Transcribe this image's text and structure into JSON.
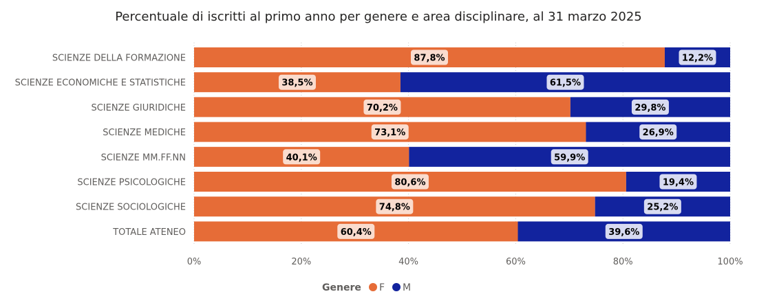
{
  "chart_data": {
    "type": "bar",
    "orientation": "horizontal",
    "stacked": "100%",
    "title": "Percentuale di iscritti al primo anno per genere e area disciplinare, al 31 marzo 2025",
    "categories": [
      "SCIENZE DELLA FORMAZIONE",
      "SCIENZE ECONOMICHE E STATISTICHE",
      "SCIENZE GIURIDICHE",
      "SCIENZE MEDICHE",
      "SCIENZE MM.FF.NN",
      "SCIENZE PSICOLOGICHE",
      "SCIENZE SOCIOLOGICHE",
      "TOTALE ATENEO"
    ],
    "series": [
      {
        "name": "F",
        "color": "#e66c37",
        "values": [
          87.8,
          38.5,
          70.2,
          73.1,
          40.1,
          80.6,
          74.8,
          60.4
        ],
        "labels": [
          "87,8%",
          "38,5%",
          "70,2%",
          "73,1%",
          "40,1%",
          "80,6%",
          "74,8%",
          "60,4%"
        ]
      },
      {
        "name": "M",
        "color": "#12239e",
        "values": [
          12.2,
          61.5,
          29.8,
          26.9,
          59.9,
          19.4,
          25.2,
          39.6
        ],
        "labels": [
          "12,2%",
          "61,5%",
          "29,8%",
          "26,9%",
          "59,9%",
          "19,4%",
          "25,2%",
          "39,6%"
        ]
      }
    ],
    "x_ticks": [
      "0%",
      "20%",
      "40%",
      "60%",
      "80%",
      "100%"
    ],
    "xlim": [
      0,
      100
    ],
    "grid": true,
    "legend": {
      "title": "Genere",
      "position": "bottom-center"
    }
  }
}
